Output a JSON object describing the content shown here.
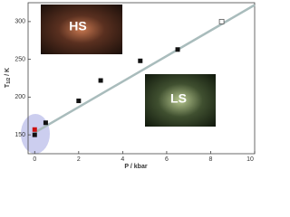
{
  "chart_data": {
    "type": "scatter",
    "ylabel": {
      "main": "T",
      "sub": "1/2",
      "unit": " / K"
    },
    "xlabel": "P / kbar",
    "xlim": [
      -0.3,
      10
    ],
    "xticks": [
      0,
      2,
      4,
      6,
      8,
      10
    ],
    "ylim": [
      125,
      325
    ],
    "yticks": [
      150,
      200,
      250,
      300
    ],
    "series": [
      {
        "color": "#111111",
        "marker": "square",
        "x": [
          0,
          0.5,
          2,
          3,
          4.8,
          6.5
        ],
        "values": [
          150,
          166,
          195,
          222,
          248,
          263
        ]
      },
      {
        "color": "#cc1111",
        "marker": "square",
        "x": [
          0
        ],
        "values": [
          157
        ]
      },
      {
        "color": "#555555",
        "marker": "open",
        "x": [
          8.5
        ],
        "values": [
          300
        ]
      },
      {
        "color": "#a9bcbc",
        "marker": "line",
        "x": [
          0,
          10
        ],
        "values": [
          153,
          322
        ]
      }
    ],
    "insets": [
      "HS",
      "LS"
    ]
  }
}
